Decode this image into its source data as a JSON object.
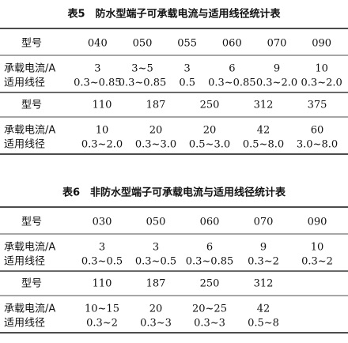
{
  "tables": [
    {
      "title": "表5　防水型端子可承载电流与适用线径统计表",
      "parts": [
        {
          "header": [
            "型号",
            "040",
            "050",
            "055",
            "060",
            "070",
            "090"
          ],
          "rows": [
            [
              "承载电流/A",
              "3",
              "3~5",
              "3",
              "6",
              "9",
              "10"
            ],
            [
              "适用线径",
              "0.3~0.85",
              "0.3~0.85",
              "0.5",
              "0.3~0.85",
              "0.3~2.0",
              "0.3~2.0"
            ]
          ]
        },
        {
          "header": [
            "型号",
            "110",
            "187",
            "250",
            "312",
            "375"
          ],
          "rows": [
            [
              "承载电流/A",
              "10",
              "20",
              "20",
              "42",
              "60"
            ],
            [
              "适用线径",
              "0.3~2.0",
              "0.3~3.0",
              "0.5~3.0",
              "0.5~8.0",
              "3.0~8.0"
            ]
          ]
        }
      ]
    },
    {
      "title": "表6　非防水型端子可承载电流与适用线径统计表",
      "parts": [
        {
          "header": [
            "型号",
            "030",
            "050",
            "060",
            "070",
            "090"
          ],
          "rows": [
            [
              "承载电流/A",
              "3",
              "3",
              "6",
              "9",
              "10"
            ],
            [
              "适用线径",
              "0.3~0.5",
              "0.3~0.5",
              "0.3~0.85",
              "0.3~2",
              "0.3~2"
            ]
          ]
        },
        {
          "header": [
            "型号",
            "110",
            "187",
            "250",
            "312"
          ],
          "rows": [
            [
              "承载电流/A",
              "10~15",
              "20",
              "20~25",
              "42"
            ],
            [
              "适用线径",
              "0.3~2",
              "0.3~3",
              "0.3~3",
              "0.5~8"
            ]
          ]
        }
      ]
    }
  ]
}
